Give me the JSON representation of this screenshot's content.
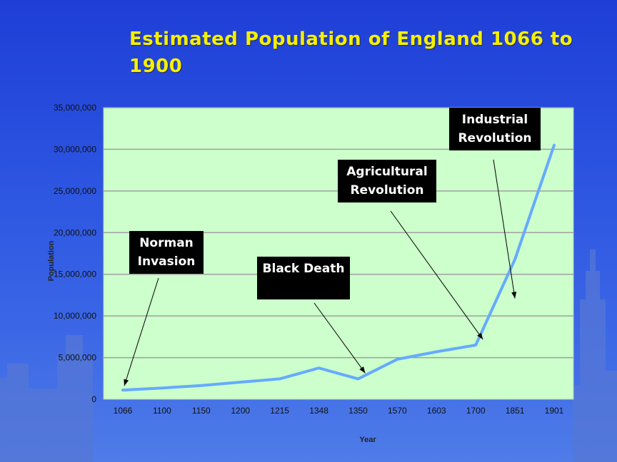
{
  "chart_data": {
    "type": "line",
    "title": "Estimated Population of England 1066 to 1900",
    "xlabel": "Year",
    "ylabel": "Population",
    "categories": [
      "1066",
      "1100",
      "1150",
      "1200",
      "1215",
      "1348",
      "1350",
      "1570",
      "1603",
      "1700",
      "1851",
      "1901"
    ],
    "series": [
      {
        "values": [
          1100000,
          1350000,
          1650000,
          2050000,
          2450000,
          3750000,
          2450000,
          4800000,
          5700000,
          6500000,
          16800000,
          30500000
        ]
      }
    ],
    "ylim": [
      0,
      35000000
    ],
    "yticks": [
      "0",
      "5,000,000",
      "10,000,000",
      "15,000,000",
      "20,000,000",
      "25,000,000",
      "30,000,000",
      "35,000,000"
    ],
    "grid": true,
    "legend": "none",
    "annotations": [
      {
        "text": "Norman Invasion",
        "lines": [
          "Norman",
          "Invasion"
        ],
        "category": "1066",
        "value": 1100000
      },
      {
        "text": "Black Death",
        "lines": [
          "Black Death"
        ],
        "category": "1350",
        "value": 2450000
      },
      {
        "text": "Agricultural Revolution",
        "lines": [
          "Agricultural",
          "Revolution"
        ],
        "category": "1700",
        "value": 6500000
      },
      {
        "text": "Industrial Revolution",
        "lines": [
          "Industrial",
          "Revolution"
        ],
        "category": "1851",
        "value": 11500000
      }
    ]
  },
  "colors": {
    "plot_background": "#ccffcc",
    "line": "#66aaff",
    "gridline": "#a0a0a0",
    "title": "#f4f000",
    "callout_background": "#000000",
    "callout_text": "#ffffff"
  }
}
